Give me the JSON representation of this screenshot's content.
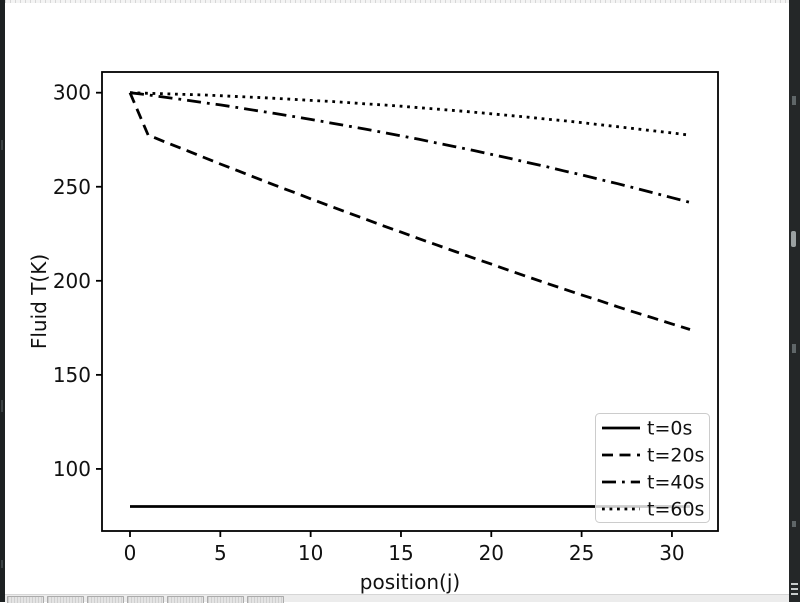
{
  "chart_data": {
    "type": "line",
    "title": "",
    "xlabel": "position(j)",
    "ylabel": "Fluid T(K)",
    "xlim": [
      -1.55,
      32.55
    ],
    "ylim": [
      67,
      311
    ],
    "xticks": [
      0,
      5,
      10,
      15,
      20,
      25,
      30
    ],
    "yticks": [
      100,
      150,
      200,
      250,
      300
    ],
    "grid": false,
    "line_color": "#000000",
    "legend_position": "lower right",
    "x": [
      0,
      1,
      2,
      3,
      4,
      5,
      6,
      7,
      8,
      9,
      10,
      11,
      12,
      13,
      14,
      15,
      16,
      17,
      18,
      19,
      20,
      21,
      22,
      23,
      24,
      25,
      26,
      27,
      28,
      29,
      30,
      31
    ],
    "series": [
      {
        "name": "t=0s",
        "style": "solid",
        "values": [
          80,
          80,
          80,
          80,
          80,
          80,
          80,
          80,
          80,
          80,
          80,
          80,
          80,
          80,
          80,
          80,
          80,
          80,
          80,
          80,
          80,
          80,
          80,
          80,
          80,
          80,
          80,
          80,
          80,
          80,
          80,
          80
        ]
      },
      {
        "name": "t=20s",
        "style": "dashed",
        "values": [
          300,
          277.5,
          273.6,
          269.8,
          265.9,
          262.1,
          258.4,
          254.6,
          250.9,
          247.3,
          243.6,
          240.0,
          236.4,
          232.9,
          229.3,
          225.9,
          222.4,
          219.0,
          215.6,
          212.2,
          208.9,
          205.5,
          202.2,
          198.9,
          195.7,
          192.5,
          189.4,
          186.2,
          183.1,
          180.1,
          177.1,
          174.1
        ]
      },
      {
        "name": "t=40s",
        "style": "dashdot",
        "values": [
          300,
          298.8,
          297.5,
          296.2,
          294.8,
          293.5,
          292.0,
          290.5,
          289.0,
          287.4,
          285.8,
          284.1,
          282.4,
          280.7,
          278.9,
          277.1,
          275.2,
          273.2,
          271.3,
          269.3,
          267.2,
          265.1,
          262.9,
          260.8,
          258.5,
          256.3,
          253.9,
          251.6,
          249.2,
          246.7,
          244.2,
          241.7
        ]
      },
      {
        "name": "t=60s",
        "style": "dotted",
        "values": [
          300,
          299.7,
          299.4,
          299.1,
          298.8,
          298.4,
          297.9,
          297.5,
          297.0,
          296.5,
          295.9,
          295.4,
          294.8,
          294.1,
          293.5,
          292.8,
          292.0,
          291.3,
          290.5,
          289.7,
          288.8,
          287.9,
          287.0,
          286.0,
          285.1,
          284.1,
          283.0,
          281.9,
          280.8,
          279.7,
          278.6,
          277.4
        ]
      }
    ]
  },
  "screen": {
    "taskbar": {
      "button_count": 7
    },
    "colors": {
      "figure_background": "#ffffff",
      "line": "#000000",
      "legend_border": "#cccccc",
      "edge_dark": "#242728",
      "taskbar_strip": "#ececec"
    }
  }
}
